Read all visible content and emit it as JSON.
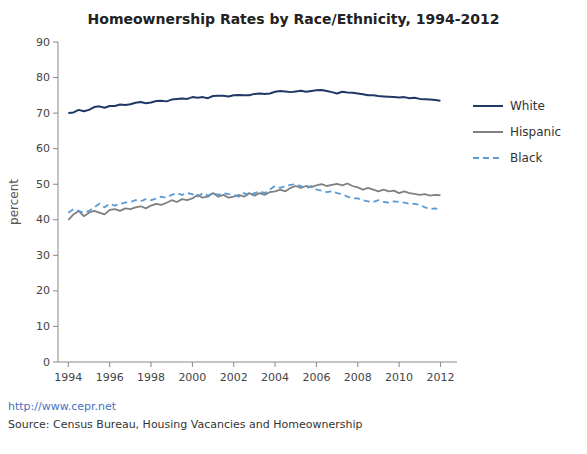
{
  "chart_data": {
    "type": "line",
    "title": "Homeownership Rates by Race/Ethnicity, 1994-2012",
    "y_label": "percent",
    "annotations": [
      "http://www.cepr.net",
      "Source: Census Bureau, Housing Vacancies and Homeownership"
    ],
    "xlim": [
      1993.5,
      2012.8
    ],
    "xticks": [
      1994,
      1996,
      1998,
      2000,
      2002,
      2004,
      2006,
      2008,
      2010,
      2012
    ],
    "ylim": [
      0,
      90
    ],
    "yticks": [
      0,
      10,
      20,
      30,
      40,
      50,
      60,
      70,
      80,
      90
    ],
    "grid": false,
    "legend": "right",
    "x": [
      1994.0,
      1994.25,
      1994.5,
      1994.75,
      1995.0,
      1995.25,
      1995.5,
      1995.75,
      1996.0,
      1996.25,
      1996.5,
      1996.75,
      1997.0,
      1997.25,
      1997.5,
      1997.75,
      1998.0,
      1998.25,
      1998.5,
      1998.75,
      1999.0,
      1999.25,
      1999.5,
      1999.75,
      2000.0,
      2000.25,
      2000.5,
      2000.75,
      2001.0,
      2001.25,
      2001.5,
      2001.75,
      2002.0,
      2002.25,
      2002.5,
      2002.75,
      2003.0,
      2003.25,
      2003.5,
      2003.75,
      2004.0,
      2004.25,
      2004.5,
      2004.75,
      2005.0,
      2005.25,
      2005.5,
      2005.75,
      2006.0,
      2006.25,
      2006.5,
      2006.75,
      2007.0,
      2007.25,
      2007.5,
      2007.75,
      2008.0,
      2008.25,
      2008.5,
      2008.75,
      2009.0,
      2009.25,
      2009.5,
      2009.75,
      2010.0,
      2010.25,
      2010.5,
      2010.75,
      2011.0,
      2011.25,
      2011.5,
      2011.75,
      2012.0
    ],
    "series": [
      {
        "name": "White",
        "color": "#1F3864",
        "line_style": "solid",
        "values": [
          70.0,
          70.2,
          70.9,
          70.5,
          70.9,
          71.7,
          71.9,
          71.5,
          72.0,
          72.0,
          72.4,
          72.3,
          72.5,
          72.9,
          73.1,
          72.8,
          73.0,
          73.4,
          73.5,
          73.3,
          73.8,
          74.0,
          74.1,
          74.0,
          74.5,
          74.3,
          74.5,
          74.2,
          74.8,
          74.9,
          74.9,
          74.7,
          75.0,
          75.1,
          75.0,
          75.0,
          75.4,
          75.5,
          75.4,
          75.5,
          76.0,
          76.2,
          76.1,
          75.9,
          76.1,
          76.3,
          76.0,
          76.2,
          76.4,
          76.5,
          76.2,
          75.9,
          75.5,
          76.0,
          75.8,
          75.7,
          75.5,
          75.3,
          75.0,
          75.0,
          74.8,
          74.7,
          74.6,
          74.5,
          74.4,
          74.5,
          74.2,
          74.3,
          74.0,
          73.9,
          73.8,
          73.7,
          73.5
        ]
      },
      {
        "name": "Hispanic",
        "color": "#808080",
        "line_style": "solid",
        "values": [
          40.0,
          41.5,
          42.5,
          41.0,
          42.0,
          42.5,
          42.0,
          41.5,
          42.8,
          43.0,
          42.5,
          43.2,
          43.0,
          43.5,
          43.8,
          43.2,
          44.0,
          44.5,
          44.2,
          44.8,
          45.5,
          45.0,
          45.8,
          45.5,
          46.0,
          47.0,
          46.2,
          46.5,
          47.5,
          46.5,
          47.0,
          46.2,
          46.5,
          47.0,
          46.5,
          47.5,
          46.8,
          47.5,
          47.0,
          47.8,
          48.0,
          48.5,
          48.0,
          49.0,
          49.5,
          49.0,
          49.5,
          49.2,
          49.7,
          50.0,
          49.5,
          49.8,
          50.1,
          49.7,
          50.2,
          49.5,
          49.1,
          48.5,
          49.0,
          48.5,
          48.0,
          48.5,
          48.0,
          48.2,
          47.5,
          48.0,
          47.5,
          47.3,
          47.0,
          47.2,
          46.8,
          47.0,
          46.9
        ]
      },
      {
        "name": "Black",
        "color": "#5B9BD5",
        "line_style": "dashed",
        "values": [
          42.0,
          43.0,
          42.5,
          42.0,
          42.5,
          43.5,
          44.5,
          43.5,
          44.5,
          44.0,
          44.5,
          44.8,
          45.0,
          45.5,
          45.2,
          45.8,
          45.5,
          46.0,
          46.5,
          46.2,
          47.0,
          47.5,
          47.0,
          47.5,
          47.2,
          46.5,
          47.5,
          46.8,
          47.5,
          47.0,
          47.5,
          47.2,
          47.0,
          46.5,
          47.5,
          46.8,
          47.5,
          48.0,
          47.5,
          48.5,
          49.5,
          49.0,
          49.5,
          49.8,
          50.0,
          49.5,
          48.8,
          49.5,
          48.5,
          48.2,
          47.8,
          48.0,
          47.5,
          47.2,
          46.5,
          46.0,
          46.0,
          45.5,
          45.2,
          45.0,
          45.5,
          45.0,
          44.8,
          45.2,
          45.0,
          44.8,
          44.5,
          44.5,
          44.2,
          43.5,
          43.0,
          43.2,
          42.8
        ]
      }
    ]
  }
}
